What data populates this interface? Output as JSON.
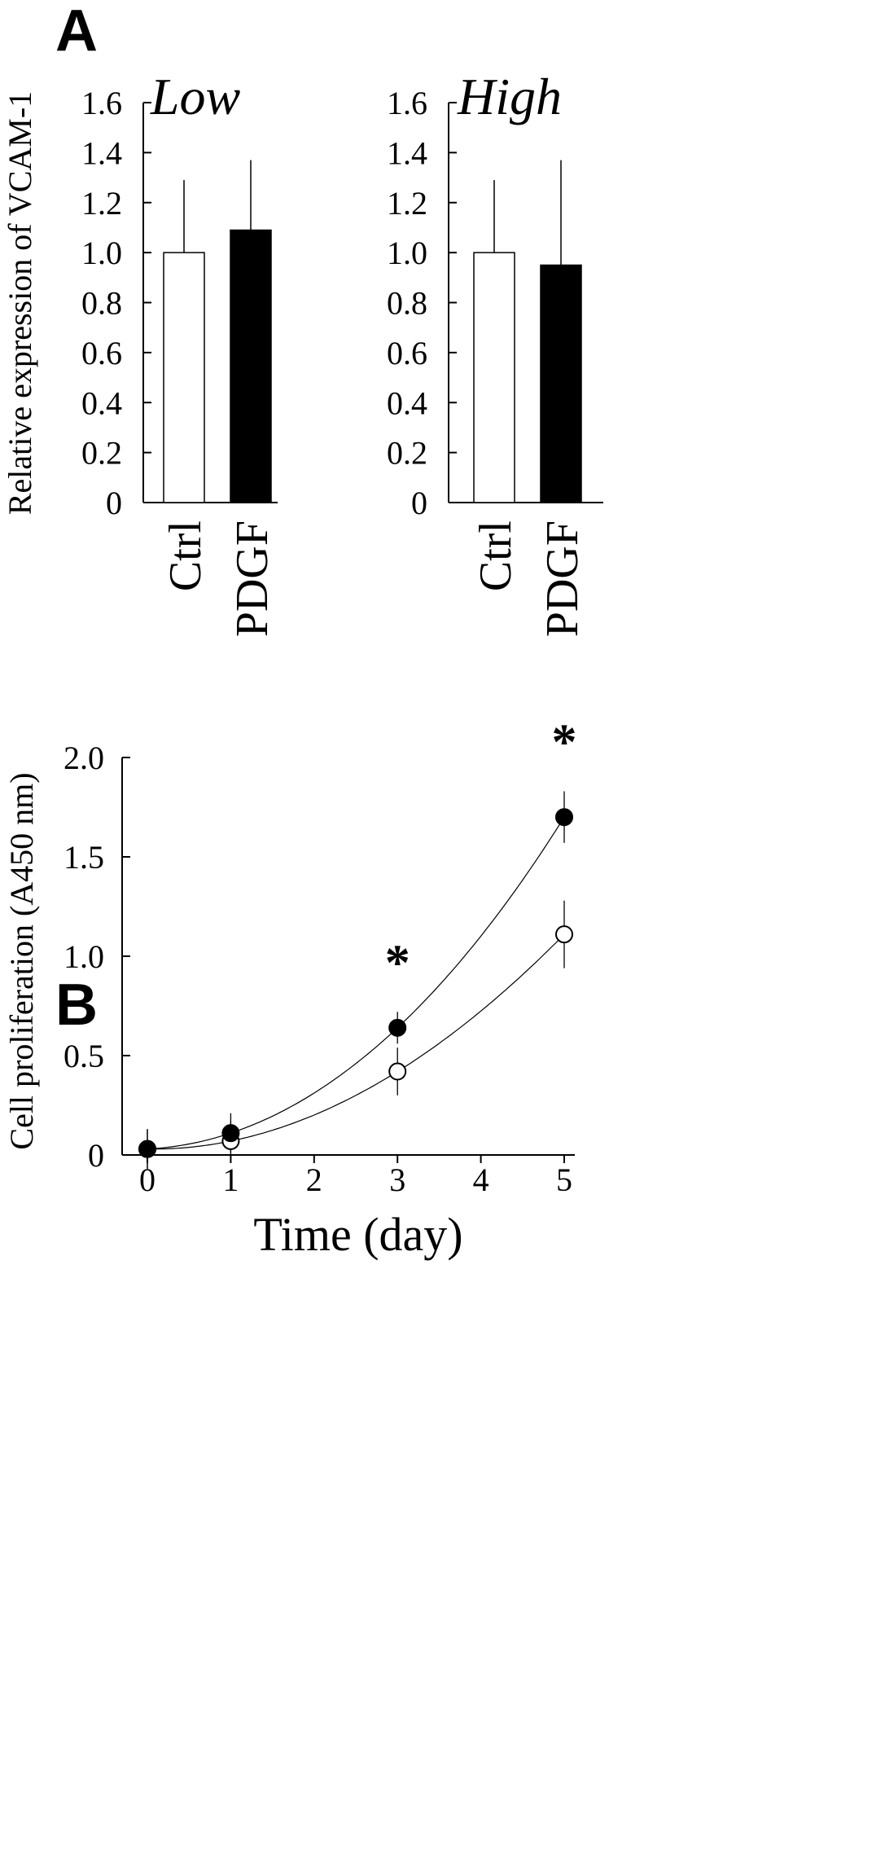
{
  "figure": {
    "panel_a_label": "A",
    "panel_b_label": "B"
  },
  "chart_data": [
    {
      "type": "bar",
      "title": "Low",
      "ylabel": "Relative expression of  VCAM-1",
      "xlabel": "",
      "categories": [
        "Ctrl",
        "PDGF"
      ],
      "values": [
        1.0,
        1.09
      ],
      "error_upper": [
        0.29,
        0.28
      ],
      "bar_colors": [
        "#ffffff",
        "#000000"
      ],
      "ylim": [
        0,
        1.6
      ],
      "yticks": [
        "0",
        "0.2",
        "0.4",
        "0.6",
        "0.8",
        "1.0",
        "1.2",
        "1.4",
        "1.6"
      ],
      "ytick_values": [
        0,
        0.2,
        0.4,
        0.6,
        0.8,
        1.0,
        1.2,
        1.4,
        1.6
      ],
      "grid": false
    },
    {
      "type": "bar",
      "title": "High",
      "xlabel": "",
      "categories": [
        "Ctrl",
        "PDGF"
      ],
      "values": [
        1.0,
        0.95
      ],
      "error_upper": [
        0.29,
        0.42
      ],
      "bar_colors": [
        "#ffffff",
        "#000000"
      ],
      "ylim": [
        0,
        1.6
      ],
      "yticks": [
        "0",
        "0.2",
        "0.4",
        "0.6",
        "0.8",
        "1.0",
        "1.2",
        "1.4",
        "1.6"
      ],
      "ytick_values": [
        0,
        0.2,
        0.4,
        0.6,
        0.8,
        1.0,
        1.2,
        1.4,
        1.6
      ],
      "grid": false
    },
    {
      "type": "line",
      "xlabel": "Time (day)",
      "ylabel": "Cell proliferation (A450 nm)",
      "x": [
        0,
        1,
        3,
        5
      ],
      "series": [
        {
          "marker": "filled-circle",
          "values": [
            0.03,
            0.11,
            0.64,
            1.7
          ],
          "error": [
            0.1,
            0.1,
            0.08,
            0.13
          ]
        },
        {
          "marker": "open-circle",
          "values": [
            0.03,
            0.07,
            0.42,
            1.11
          ],
          "error": [
            0.1,
            0.1,
            0.12,
            0.17
          ]
        }
      ],
      "significance": [
        {
          "x": 3,
          "label": "*"
        },
        {
          "x": 5,
          "label": "*"
        }
      ],
      "xlim": [
        0,
        5
      ],
      "ylim": [
        0,
        2.0
      ],
      "xticks": [
        "0",
        "1",
        "2",
        "3",
        "4",
        "5"
      ],
      "xtick_values": [
        0,
        1,
        2,
        3,
        4,
        5
      ],
      "yticks": [
        "0",
        "0.5",
        "1.0",
        "1.5",
        "2.0"
      ],
      "ytick_values": [
        0,
        0.5,
        1.0,
        1.5,
        2.0
      ],
      "grid": false
    }
  ]
}
